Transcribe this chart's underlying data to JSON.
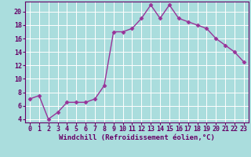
{
  "x": [
    0,
    1,
    2,
    3,
    4,
    5,
    6,
    7,
    8,
    9,
    10,
    11,
    12,
    13,
    14,
    15,
    16,
    17,
    18,
    19,
    20,
    21,
    22,
    23
  ],
  "y": [
    7.0,
    7.5,
    4.0,
    5.0,
    6.5,
    6.5,
    6.5,
    7.0,
    9.0,
    17.0,
    17.0,
    17.5,
    19.0,
    21.0,
    19.0,
    21.0,
    19.0,
    18.5,
    18.0,
    17.5,
    16.0,
    15.0,
    14.0,
    12.5
  ],
  "line_color": "#993399",
  "marker": "D",
  "markersize": 2.5,
  "linewidth": 1.0,
  "background_color": "#aadddd",
  "grid_color": "#cceeee",
  "xlabel": "Windchill (Refroidissement éolien,°C)",
  "ylabel": "",
  "xlim": [
    -0.5,
    23.5
  ],
  "ylim": [
    3.5,
    21.5
  ],
  "yticks": [
    4,
    6,
    8,
    10,
    12,
    14,
    16,
    18,
    20
  ],
  "xticks": [
    0,
    1,
    2,
    3,
    4,
    5,
    6,
    7,
    8,
    9,
    10,
    11,
    12,
    13,
    14,
    15,
    16,
    17,
    18,
    19,
    20,
    21,
    22,
    23
  ],
  "xlabel_fontsize": 6.5,
  "tick_fontsize": 6.0,
  "axis_color": "#660066",
  "spine_color": "#660066"
}
